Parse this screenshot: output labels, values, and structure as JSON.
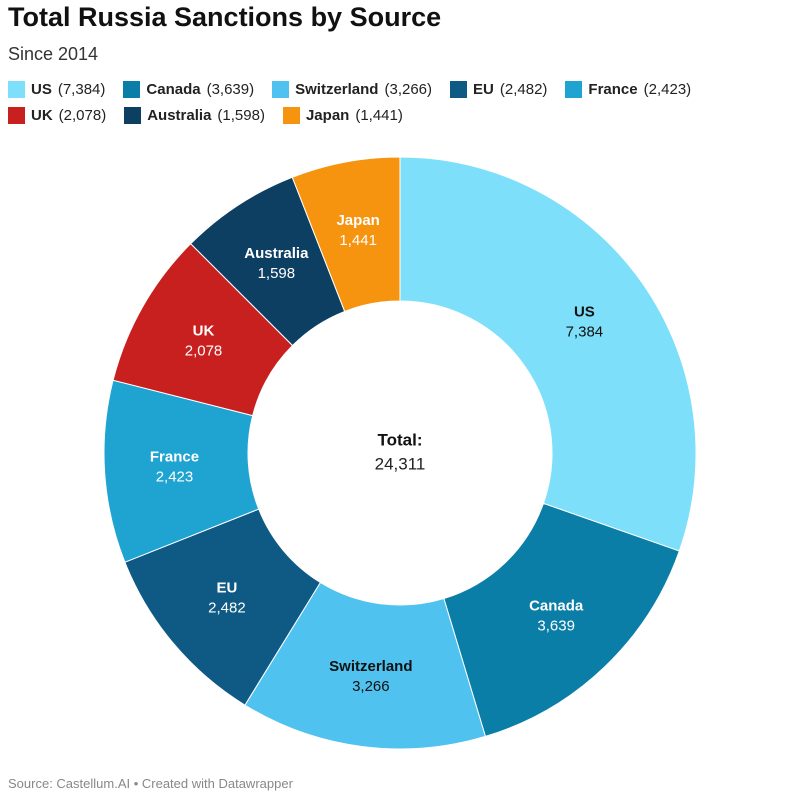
{
  "chart_data": {
    "type": "donut",
    "title": "Total Russia Sanctions by Source",
    "subtitle": "Since 2014",
    "source": "Source: Castellum.AI • Created with Datawrapper",
    "categories": [
      "US",
      "Canada",
      "Switzerland",
      "EU",
      "France",
      "UK",
      "Australia",
      "Japan"
    ],
    "values": [
      7384,
      3639,
      3266,
      2482,
      2423,
      2078,
      1598,
      1441
    ],
    "value_labels": [
      "7,384",
      "3,639",
      "3,266",
      "2,482",
      "2,423",
      "2,078",
      "1,598",
      "1,441"
    ],
    "colors": [
      "#7ddff9",
      "#0a7ea6",
      "#4fc2ef",
      "#0f5a85",
      "#1fa3d1",
      "#c8201f",
      "#0d3f63",
      "#f7940f"
    ],
    "center_label": "Total:",
    "total": {
      "value": 24311,
      "label": "24,311"
    }
  }
}
